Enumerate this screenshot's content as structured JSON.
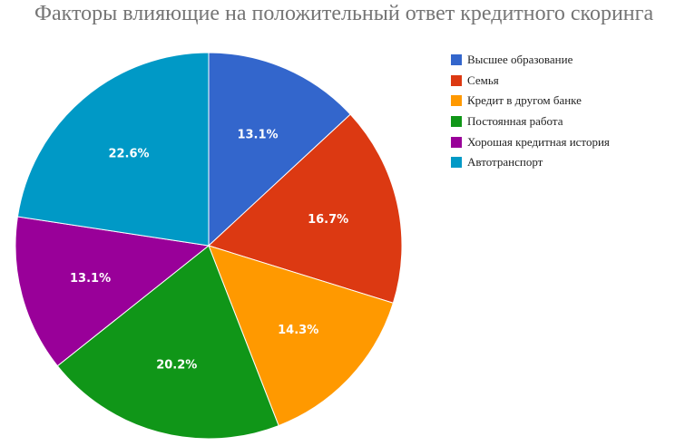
{
  "chart_data": {
    "type": "pie",
    "title": "Факторы влияющие на положительный ответ кредитного скоринга",
    "legend_position": "right",
    "slices": [
      {
        "name": "Высшее образование",
        "value": 13.1,
        "label": "13.1%",
        "color": "#3366cc"
      },
      {
        "name": "Семья",
        "value": 16.7,
        "label": "16.7%",
        "color": "#dc3912"
      },
      {
        "name": "Кредит в другом банке",
        "value": 14.3,
        "label": "14.3%",
        "color": "#ff9900"
      },
      {
        "name": "Постоянная работа",
        "value": 20.2,
        "label": "20.2%",
        "color": "#109618"
      },
      {
        "name": "Хорошая кредитная история",
        "value": 13.1,
        "label": "13.1%",
        "color": "#990099"
      },
      {
        "name": "Автотранспорт",
        "value": 22.6,
        "label": "22.6%",
        "color": "#0099c6"
      }
    ]
  }
}
